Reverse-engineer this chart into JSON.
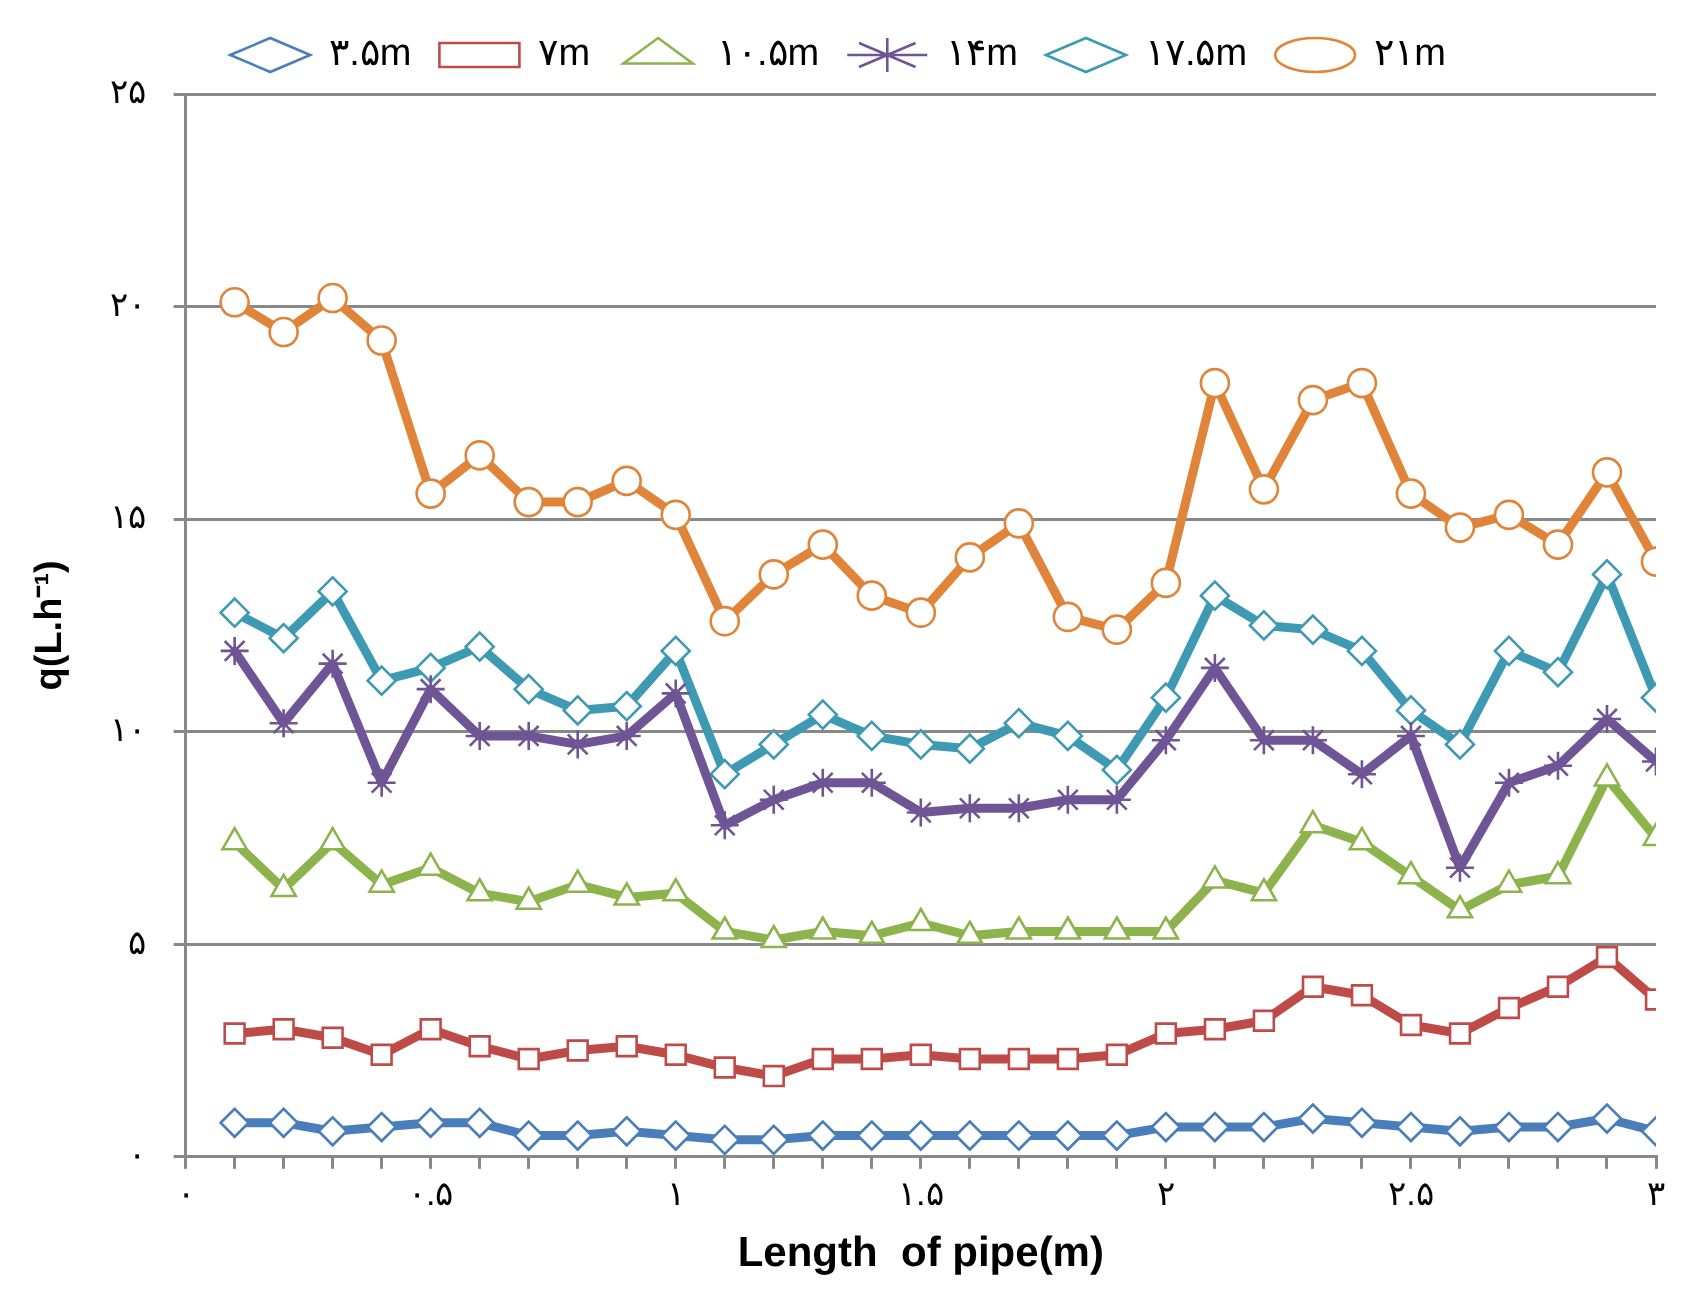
{
  "chart_data": {
    "type": "line",
    "xlabel": "Length  of pipe(m)",
    "ylabel": "q(L.h⁻¹)",
    "x": [
      0.1,
      0.2,
      0.3,
      0.4,
      0.5,
      0.6,
      0.7,
      0.8,
      0.9,
      1.0,
      1.1,
      1.2,
      1.3,
      1.4,
      1.5,
      1.6,
      1.7,
      1.8,
      1.9,
      2.0,
      2.1,
      2.2,
      2.3,
      2.4,
      2.5,
      2.6,
      2.7,
      2.8,
      2.9,
      3.0
    ],
    "xlim": [
      0,
      3
    ],
    "ylim": [
      0,
      25
    ],
    "xticks": [
      {
        "value": 0,
        "label": "۰"
      },
      {
        "value": 0.1,
        "label": null
      },
      {
        "value": 0.2,
        "label": null
      },
      {
        "value": 0.3,
        "label": null
      },
      {
        "value": 0.4,
        "label": null
      },
      {
        "value": 0.5,
        "label": "۰.۵"
      },
      {
        "value": 0.6,
        "label": null
      },
      {
        "value": 0.7,
        "label": null
      },
      {
        "value": 0.8,
        "label": null
      },
      {
        "value": 0.9,
        "label": null
      },
      {
        "value": 1,
        "label": "۱"
      },
      {
        "value": 1.1,
        "label": null
      },
      {
        "value": 1.2,
        "label": null
      },
      {
        "value": 1.3,
        "label": null
      },
      {
        "value": 1.4,
        "label": null
      },
      {
        "value": 1.5,
        "label": "۱.۵"
      },
      {
        "value": 1.6,
        "label": null
      },
      {
        "value": 1.7,
        "label": null
      },
      {
        "value": 1.8,
        "label": null
      },
      {
        "value": 1.9,
        "label": null
      },
      {
        "value": 2,
        "label": "۲"
      },
      {
        "value": 2.1,
        "label": null
      },
      {
        "value": 2.2,
        "label": null
      },
      {
        "value": 2.3,
        "label": null
      },
      {
        "value": 2.4,
        "label": null
      },
      {
        "value": 2.5,
        "label": "۲.۵"
      },
      {
        "value": 2.6,
        "label": null
      },
      {
        "value": 2.7,
        "label": null
      },
      {
        "value": 2.8,
        "label": null
      },
      {
        "value": 2.9,
        "label": null
      },
      {
        "value": 3,
        "label": "۳"
      }
    ],
    "yticks": [
      {
        "value": 0,
        "label": "۰"
      },
      {
        "value": 5,
        "label": "۵"
      },
      {
        "value": 10,
        "label": "۱۰"
      },
      {
        "value": 15,
        "label": "۱۵"
      },
      {
        "value": 20,
        "label": "۲۰"
      },
      {
        "value": 25,
        "label": "۲۵"
      }
    ],
    "grid": "y",
    "legend": "top",
    "line_style": "solid",
    "series": [
      {
        "name": "۳.۵m",
        "color": "#4a7ebb",
        "marker": "diamond",
        "values": [
          0.8,
          0.8,
          0.6,
          0.7,
          0.8,
          0.8,
          0.5,
          0.5,
          0.6,
          0.5,
          0.4,
          0.4,
          0.5,
          0.5,
          0.5,
          0.5,
          0.5,
          0.5,
          0.5,
          0.7,
          0.7,
          0.7,
          0.9,
          0.8,
          0.7,
          0.6,
          0.7,
          0.7,
          0.9,
          0.6
        ]
      },
      {
        "name": "۷m",
        "color": "#be4b48",
        "marker": "square",
        "values": [
          2.9,
          3.0,
          2.8,
          2.4,
          3.0,
          2.6,
          2.3,
          2.5,
          2.6,
          2.4,
          2.1,
          1.9,
          2.3,
          2.3,
          2.4,
          2.3,
          2.3,
          2.3,
          2.4,
          2.9,
          3.0,
          3.2,
          4.0,
          3.8,
          3.1,
          2.9,
          3.5,
          4.0,
          4.7,
          3.7
        ]
      },
      {
        "name": "۱۰.۵m",
        "color": "#8cb34c",
        "marker": "triangle",
        "values": [
          7.4,
          6.3,
          7.4,
          6.4,
          6.8,
          6.2,
          6.0,
          6.4,
          6.1,
          6.2,
          5.3,
          5.1,
          5.3,
          5.2,
          5.5,
          5.2,
          5.3,
          5.3,
          5.3,
          5.3,
          6.5,
          6.2,
          7.8,
          7.4,
          6.6,
          5.8,
          6.4,
          6.6,
          8.9,
          7.5
        ]
      },
      {
        "name": "۱۴m",
        "color": "#6f5496",
        "marker": "cross",
        "values": [
          11.9,
          10.2,
          11.6,
          8.8,
          11.0,
          9.9,
          9.9,
          9.7,
          9.9,
          10.9,
          7.8,
          8.4,
          8.8,
          8.8,
          8.1,
          8.2,
          8.2,
          8.4,
          8.4,
          9.8,
          11.5,
          9.8,
          9.8,
          9.0,
          9.9,
          6.8,
          8.8,
          9.2,
          10.3,
          9.3
        ]
      },
      {
        "name": "۱۷.۵m",
        "color": "#3e9ab2",
        "marker": "diamond",
        "values": [
          12.8,
          12.2,
          13.3,
          11.2,
          11.5,
          12.0,
          11.0,
          10.5,
          10.6,
          11.9,
          9.0,
          9.7,
          10.4,
          9.9,
          9.7,
          9.6,
          10.2,
          9.9,
          9.1,
          10.8,
          13.2,
          12.5,
          12.4,
          11.9,
          10.5,
          9.7,
          11.9,
          11.4,
          13.7,
          10.8
        ]
      },
      {
        "name": "۲۱m",
        "color": "#e0843a",
        "marker": "circle",
        "values": [
          20.1,
          19.4,
          20.2,
          19.2,
          15.6,
          16.5,
          15.4,
          15.4,
          15.9,
          15.1,
          12.6,
          13.7,
          14.4,
          13.2,
          12.8,
          14.1,
          14.9,
          12.7,
          12.4,
          13.5,
          18.2,
          15.7,
          17.8,
          18.2,
          15.6,
          14.8,
          15.1,
          14.4,
          16.1,
          14.0
        ]
      }
    ]
  }
}
